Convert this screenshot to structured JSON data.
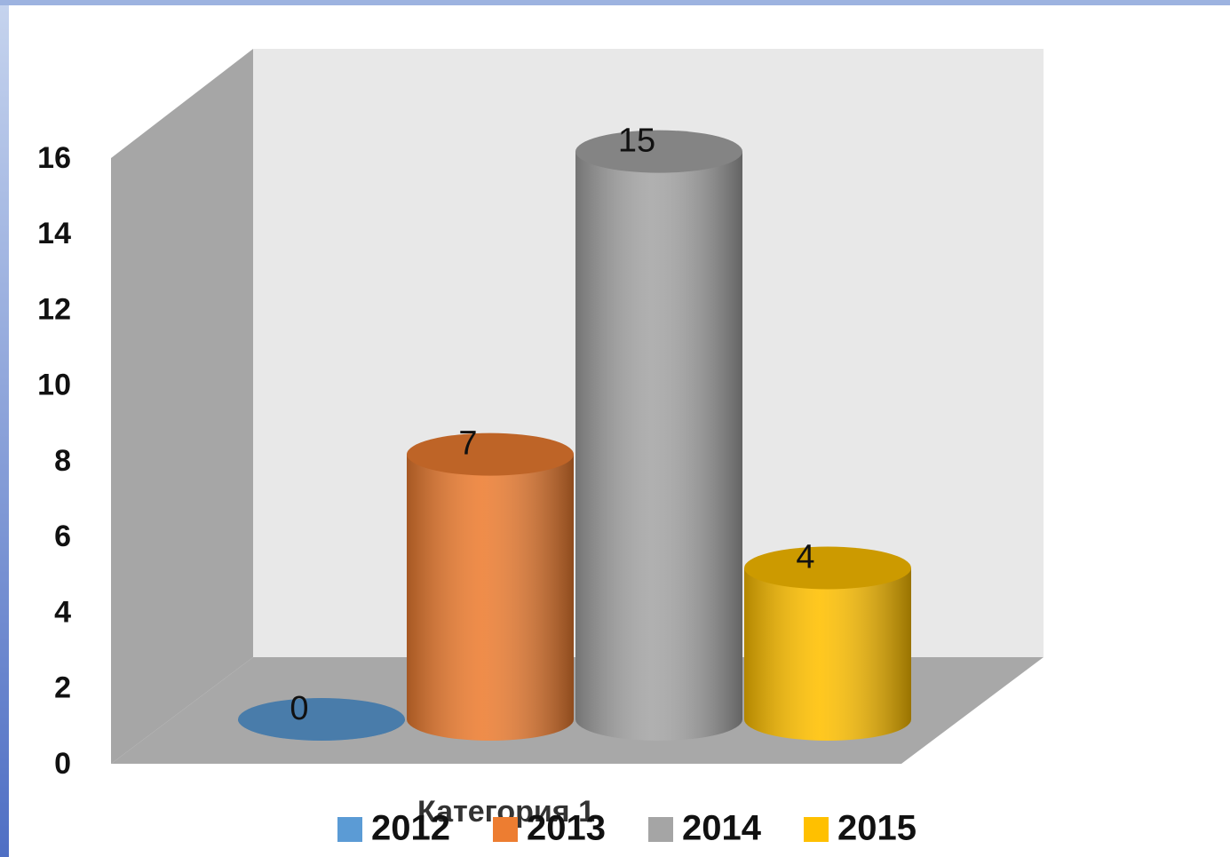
{
  "chart_data": {
    "type": "bar3d",
    "categories": [
      "Категория 1"
    ],
    "series": [
      {
        "name": "2012",
        "color": "#5b9bd5",
        "values": [
          0
        ]
      },
      {
        "name": "2013",
        "color": "#ed7d31",
        "values": [
          7
        ]
      },
      {
        "name": "2014",
        "color": "#a5a5a5",
        "values": [
          15
        ]
      },
      {
        "name": "2015",
        "color": "#ffc000",
        "values": [
          4
        ]
      }
    ],
    "ylim": [
      0,
      16
    ],
    "yticks": [
      0,
      2,
      4,
      6,
      8,
      10,
      12,
      14,
      16
    ],
    "legend": "bottom"
  }
}
